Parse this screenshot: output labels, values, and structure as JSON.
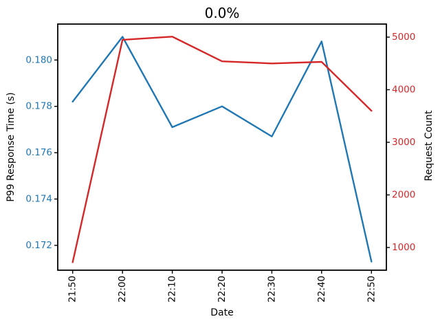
{
  "chart_data": {
    "type": "line",
    "title": "0.0%",
    "xlabel": "Date",
    "x_tick_labels": [
      "21:50",
      "22:00",
      "22:10",
      "22:20",
      "22:30",
      "22:40",
      "22:50"
    ],
    "xlim": [
      -0.3,
      6.3
    ],
    "grid": false,
    "legend": "none",
    "left_axis": {
      "label": "P99 Response Time (s)",
      "color": "#1f77b4",
      "ticks": [
        0.172,
        0.174,
        0.176,
        0.178,
        0.18
      ],
      "tick_labels": [
        "0.172",
        "0.174",
        "0.176",
        "0.178",
        "0.180"
      ],
      "ylim": [
        0.17093,
        0.18155
      ]
    },
    "right_axis": {
      "label": "Request Count",
      "color": "#d62728",
      "ticks": [
        1000,
        2000,
        3000,
        4000,
        5000
      ],
      "tick_labels": [
        "1000",
        "2000",
        "3000",
        "4000",
        "5000"
      ],
      "ylim": [
        569,
        5249
      ]
    },
    "series": [
      {
        "name": "P99 Response Time (s)",
        "axis": "left",
        "color": "#1f77b4",
        "values": [
          0.1782,
          0.181,
          0.1771,
          0.178,
          0.1767,
          0.1808,
          0.1713
        ]
      },
      {
        "name": "Request Count",
        "axis": "right",
        "color": "#d62728",
        "values": [
          720,
          4950,
          5010,
          4540,
          4500,
          4530,
          3600
        ]
      }
    ]
  }
}
